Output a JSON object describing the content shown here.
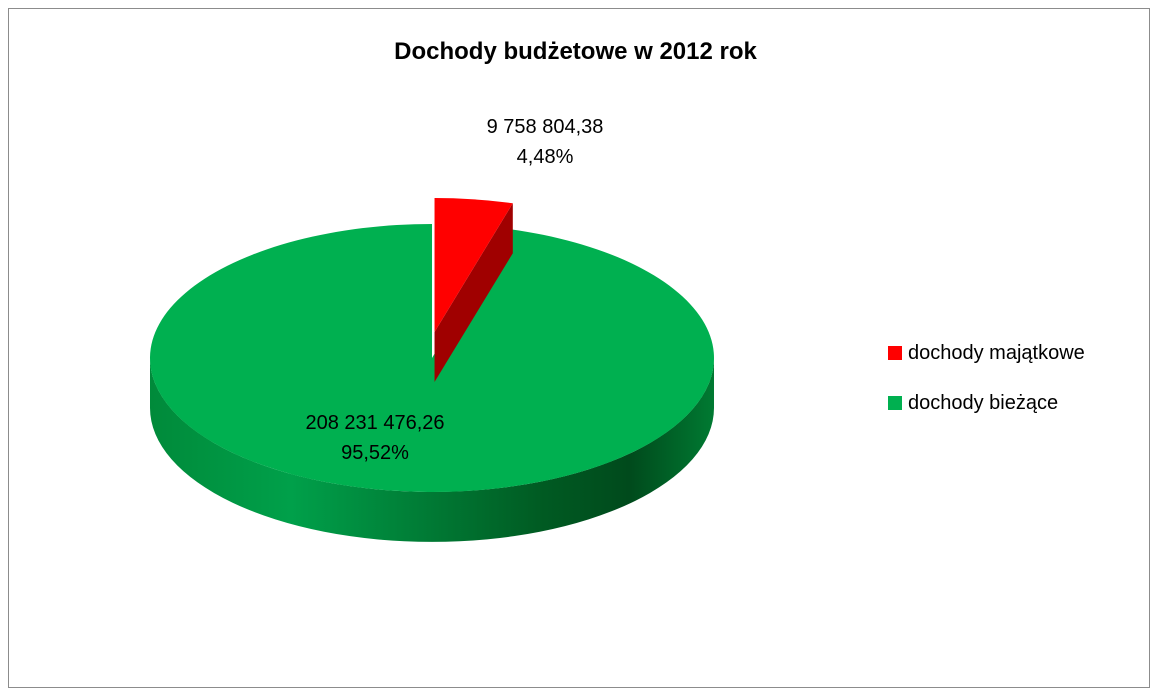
{
  "chart_data": {
    "type": "pie",
    "title": "Dochody budżetowe w 2012 rok",
    "legend_position": "right",
    "slices": [
      {
        "name": "dochody majątkowe",
        "value": 9758804.38,
        "value_label": "9 758 804,38",
        "percent_label": "4,48%",
        "color": "#ff0000",
        "exploded": true
      },
      {
        "name": "dochody bieżące",
        "value": 208231476.26,
        "value_label": "208 231 476,26",
        "percent_label": "95,52%",
        "color": "#00b050",
        "exploded": false
      }
    ]
  }
}
